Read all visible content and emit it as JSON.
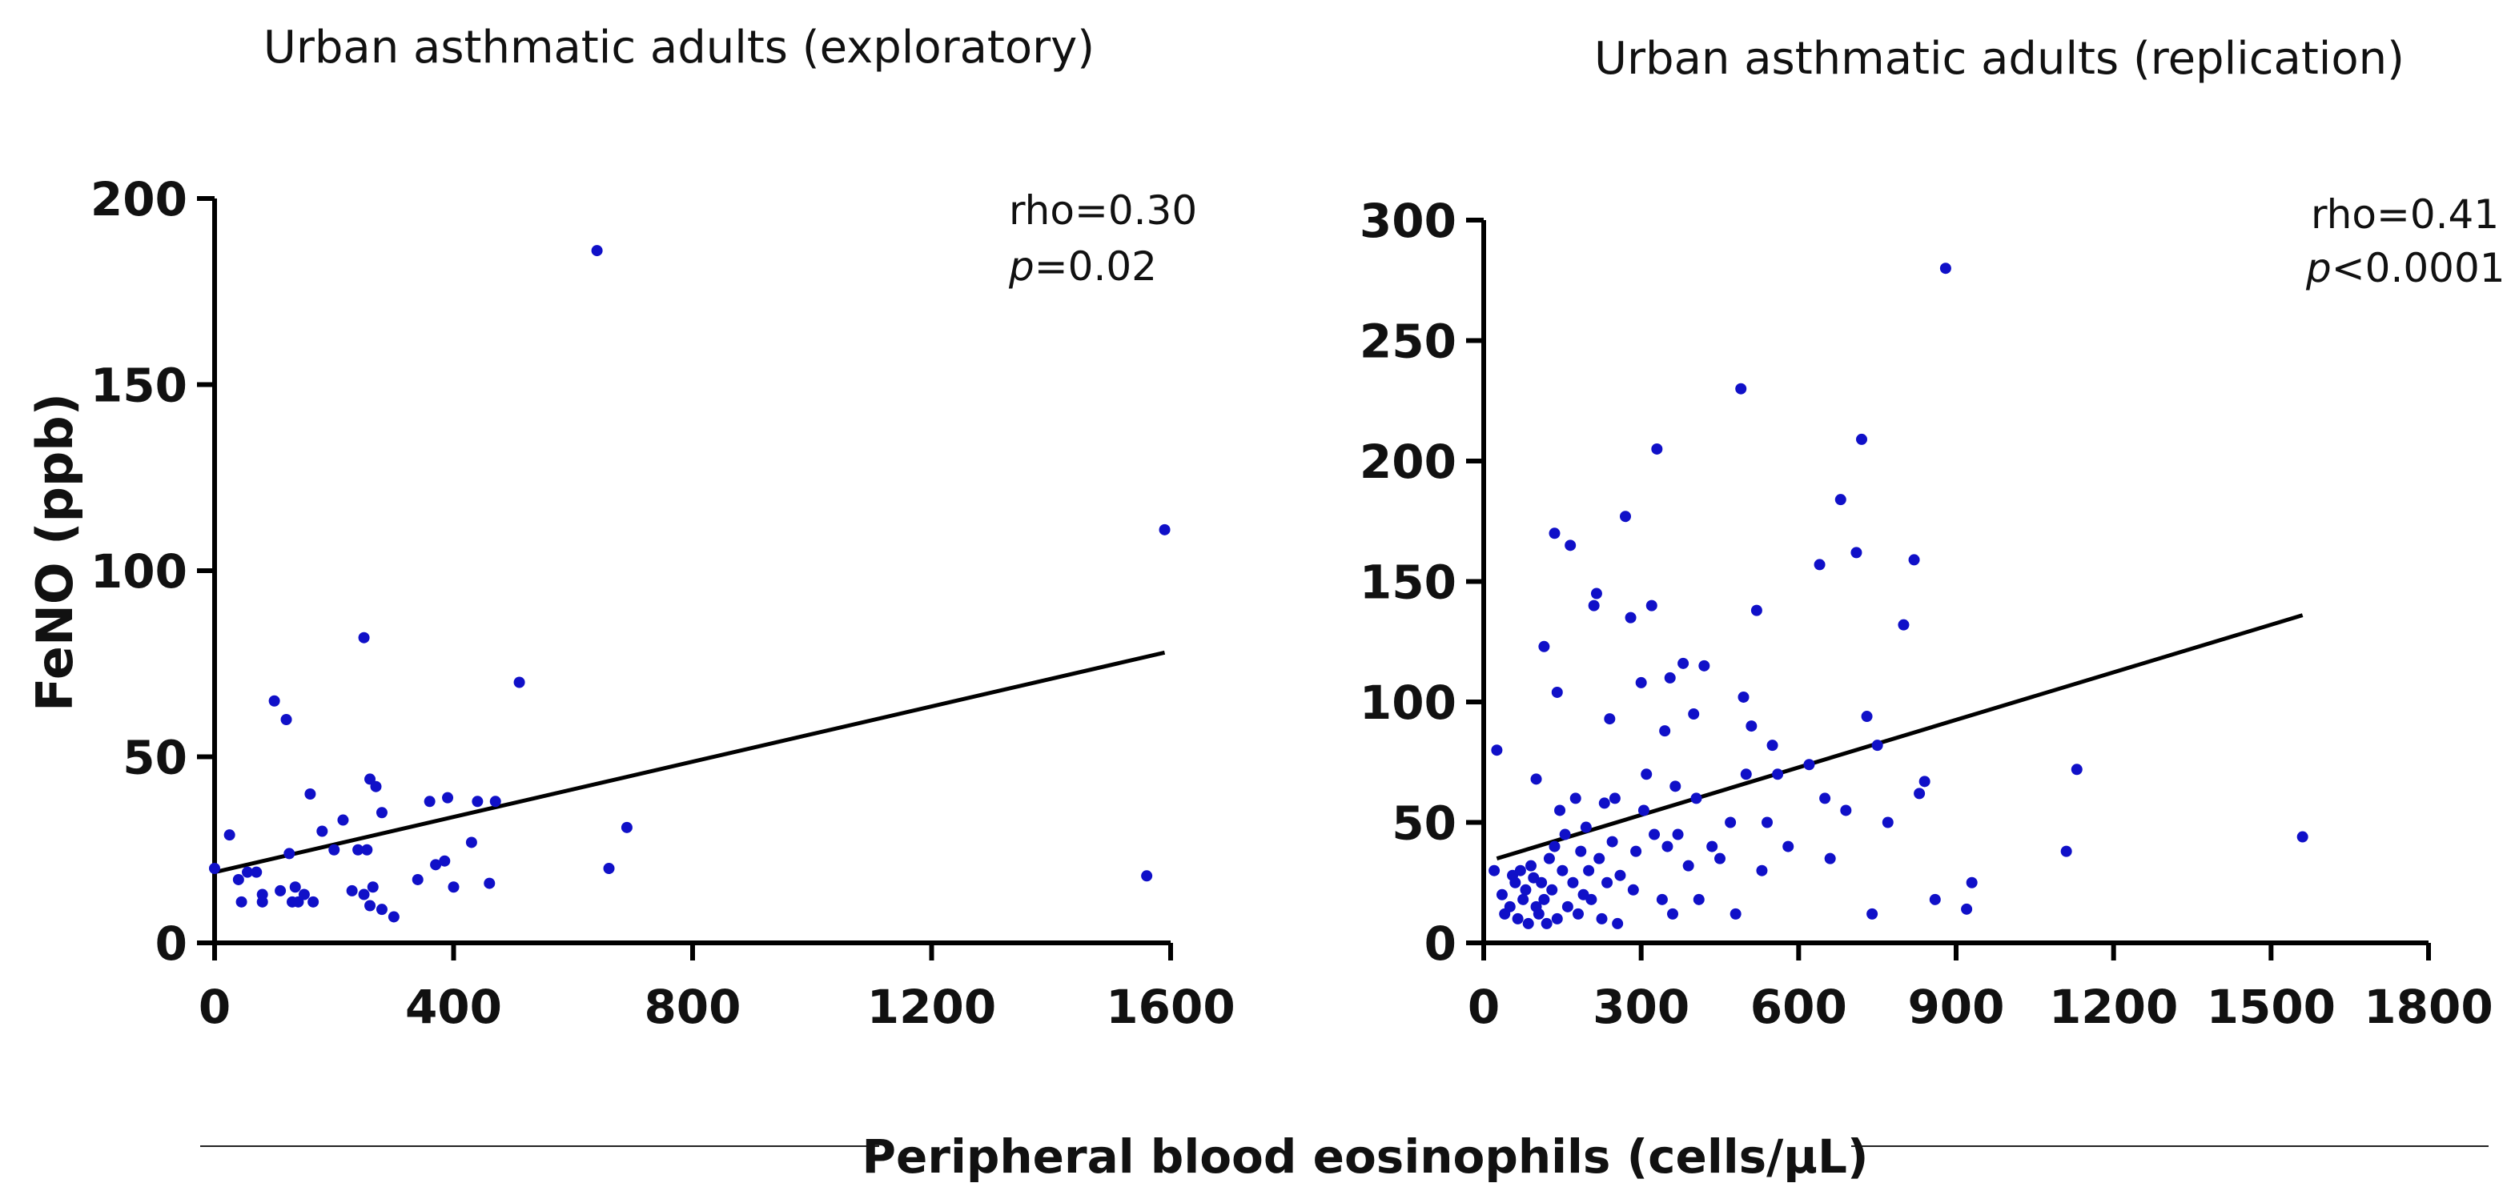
{
  "shared_xlabel": "Peripheral blood eosinophils (cells/μL)",
  "shared_ylabel": "FeNO (ppb)",
  "chart_data": [
    {
      "type": "scatter",
      "title": "Urban asthmatic adults (exploratory)",
      "xlabel": "Peripheral blood eosinophils (cells/μL)",
      "ylabel": "FeNO (ppb)",
      "xlim": [
        0,
        1600
      ],
      "ylim": [
        0,
        200
      ],
      "xticks": [
        "0",
        "400",
        "800",
        "1200",
        "1600"
      ],
      "yticks": [
        "0",
        "50",
        "100",
        "150",
        "200"
      ],
      "stats": {
        "rho": "rho=0.30",
        "p_label": "p",
        "p_value": "=0.02"
      },
      "fit_line": {
        "x": [
          0,
          1590
        ],
        "y": [
          19,
          78
        ]
      },
      "points": [
        [
          0,
          20
        ],
        [
          25,
          29
        ],
        [
          40,
          17
        ],
        [
          45,
          11
        ],
        [
          55,
          19
        ],
        [
          70,
          19
        ],
        [
          80,
          11
        ],
        [
          80,
          13
        ],
        [
          100,
          65
        ],
        [
          110,
          14
        ],
        [
          120,
          60
        ],
        [
          125,
          24
        ],
        [
          130,
          11
        ],
        [
          135,
          15
        ],
        [
          140,
          11
        ],
        [
          150,
          13
        ],
        [
          160,
          40
        ],
        [
          165,
          11
        ],
        [
          180,
          30
        ],
        [
          200,
          25
        ],
        [
          215,
          33
        ],
        [
          230,
          14
        ],
        [
          240,
          25
        ],
        [
          250,
          82
        ],
        [
          250,
          13
        ],
        [
          255,
          25
        ],
        [
          260,
          44
        ],
        [
          260,
          10
        ],
        [
          265,
          15
        ],
        [
          270,
          42
        ],
        [
          280,
          9
        ],
        [
          280,
          35
        ],
        [
          300,
          7
        ],
        [
          340,
          17
        ],
        [
          360,
          38
        ],
        [
          370,
          21
        ],
        [
          385,
          22
        ],
        [
          390,
          39
        ],
        [
          400,
          15
        ],
        [
          430,
          27
        ],
        [
          440,
          38
        ],
        [
          460,
          16
        ],
        [
          470,
          38
        ],
        [
          510,
          70
        ],
        [
          640,
          186
        ],
        [
          660,
          20
        ],
        [
          690,
          31
        ],
        [
          1560,
          18
        ],
        [
          1590,
          111
        ]
      ]
    },
    {
      "type": "scatter",
      "title": "Urban asthmatic adults (replication)",
      "xlabel": "Peripheral blood eosinophils (cells/μL)",
      "ylabel": "FeNO (ppb)",
      "xlim": [
        0,
        1800
      ],
      "ylim": [
        0,
        300
      ],
      "xticks": [
        "0",
        "300",
        "600",
        "900",
        "1200",
        "1500",
        "1800"
      ],
      "yticks": [
        "0",
        "50",
        "100",
        "150",
        "200",
        "250",
        "300"
      ],
      "stats": {
        "rho": "rho=0.41",
        "p_label": "p",
        "p_value": "<0.0001"
      },
      "fit_line": {
        "x": [
          25,
          1560
        ],
        "y": [
          35,
          136
        ]
      },
      "points": [
        [
          20,
          30
        ],
        [
          25,
          80
        ],
        [
          35,
          20
        ],
        [
          40,
          12
        ],
        [
          50,
          15
        ],
        [
          55,
          28
        ],
        [
          60,
          25
        ],
        [
          65,
          10
        ],
        [
          70,
          30
        ],
        [
          75,
          18
        ],
        [
          80,
          22
        ],
        [
          85,
          8
        ],
        [
          90,
          32
        ],
        [
          95,
          27
        ],
        [
          100,
          15
        ],
        [
          100,
          68
        ],
        [
          105,
          12
        ],
        [
          110,
          25
        ],
        [
          115,
          123
        ],
        [
          115,
          18
        ],
        [
          120,
          8
        ],
        [
          125,
          35
        ],
        [
          130,
          22
        ],
        [
          135,
          170
        ],
        [
          135,
          40
        ],
        [
          140,
          10
        ],
        [
          140,
          104
        ],
        [
          145,
          55
        ],
        [
          150,
          30
        ],
        [
          155,
          45
        ],
        [
          160,
          15
        ],
        [
          165,
          165
        ],
        [
          170,
          25
        ],
        [
          175,
          60
        ],
        [
          180,
          12
        ],
        [
          185,
          38
        ],
        [
          190,
          20
        ],
        [
          195,
          48
        ],
        [
          200,
          30
        ],
        [
          205,
          18
        ],
        [
          210,
          140
        ],
        [
          215,
          145
        ],
        [
          220,
          35
        ],
        [
          225,
          10
        ],
        [
          230,
          58
        ],
        [
          235,
          25
        ],
        [
          240,
          93
        ],
        [
          245,
          42
        ],
        [
          250,
          60
        ],
        [
          255,
          8
        ],
        [
          260,
          28
        ],
        [
          270,
          177
        ],
        [
          280,
          135
        ],
        [
          285,
          22
        ],
        [
          290,
          38
        ],
        [
          300,
          108
        ],
        [
          305,
          55
        ],
        [
          310,
          70
        ],
        [
          320,
          140
        ],
        [
          325,
          45
        ],
        [
          330,
          205
        ],
        [
          340,
          18
        ],
        [
          345,
          88
        ],
        [
          350,
          40
        ],
        [
          355,
          110
        ],
        [
          360,
          12
        ],
        [
          365,
          65
        ],
        [
          370,
          45
        ],
        [
          380,
          116
        ],
        [
          390,
          32
        ],
        [
          400,
          95
        ],
        [
          405,
          60
        ],
        [
          410,
          18
        ],
        [
          420,
          115
        ],
        [
          435,
          40
        ],
        [
          450,
          35
        ],
        [
          470,
          50
        ],
        [
          480,
          12
        ],
        [
          490,
          230
        ],
        [
          495,
          102
        ],
        [
          500,
          70
        ],
        [
          510,
          90
        ],
        [
          520,
          138
        ],
        [
          530,
          30
        ],
        [
          540,
          50
        ],
        [
          550,
          82
        ],
        [
          560,
          70
        ],
        [
          580,
          40
        ],
        [
          620,
          74
        ],
        [
          640,
          157
        ],
        [
          650,
          60
        ],
        [
          660,
          35
        ],
        [
          680,
          184
        ],
        [
          690,
          55
        ],
        [
          710,
          162
        ],
        [
          720,
          209
        ],
        [
          730,
          94
        ],
        [
          740,
          12
        ],
        [
          750,
          82
        ],
        [
          770,
          50
        ],
        [
          800,
          132
        ],
        [
          820,
          159
        ],
        [
          830,
          62
        ],
        [
          840,
          67
        ],
        [
          860,
          18
        ],
        [
          880,
          280
        ],
        [
          920,
          14
        ],
        [
          930,
          25
        ],
        [
          1110,
          38
        ],
        [
          1130,
          72
        ],
        [
          1560,
          44
        ]
      ]
    }
  ]
}
